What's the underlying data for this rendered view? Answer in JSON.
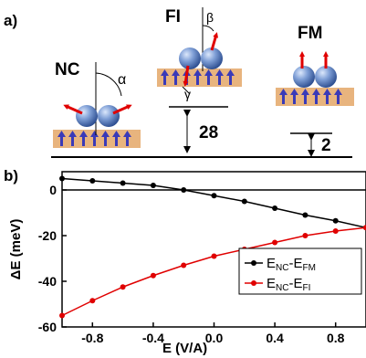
{
  "panel_a": {
    "label": "a)",
    "configs": {
      "nc": {
        "name": "NC",
        "angle_label": "α"
      },
      "fi": {
        "name": "FI",
        "angle_label_top": "β",
        "angle_label_bottom": "γ"
      },
      "fm": {
        "name": "FM"
      }
    },
    "energy_gaps": {
      "fi_gap": "28",
      "fm_gap": "2"
    },
    "colors": {
      "substrate": "#e8b47e",
      "substrate_arrow": "#3a3ab8",
      "spin_arrow": "#e00000",
      "atom": "#5f86c7"
    }
  },
  "panel_b": {
    "label": "b)"
  },
  "chart_data": {
    "type": "line",
    "xlabel": "E (V/A)",
    "ylabel": "ΔE (meV)",
    "xlim": [
      -1.0,
      1.0
    ],
    "ylim": [
      -60,
      8
    ],
    "xticks": [
      "-0.8",
      "-0.4",
      "0.0",
      "0.4",
      "0.8"
    ],
    "xtick_values": [
      -0.8,
      -0.4,
      0.0,
      0.4,
      0.8
    ],
    "yticks": [
      "0",
      "-20",
      "-40",
      "-60"
    ],
    "ytick_values": [
      0,
      -20,
      -40,
      -60
    ],
    "grid": false,
    "legend_placement": "bottom-right",
    "series": [
      {
        "name_main": "E",
        "name_sub1": "NC",
        "name_mid": "-E",
        "name_sub2": "FM",
        "color": "#000000",
        "x": [
          -1.0,
          -0.8,
          -0.6,
          -0.4,
          -0.2,
          0.0,
          0.2,
          0.4,
          0.6,
          0.8,
          1.0
        ],
        "y": [
          5,
          4,
          3,
          2,
          0,
          -2.5,
          -5,
          -8,
          -11,
          -13.5,
          -16.5
        ]
      },
      {
        "name_main": "E",
        "name_sub1": "NC",
        "name_mid": "-E",
        "name_sub2": "FI",
        "color": "#e00000",
        "x": [
          -1.0,
          -0.8,
          -0.6,
          -0.4,
          -0.2,
          0.0,
          0.2,
          0.4,
          0.6,
          0.8,
          1.0
        ],
        "y": [
          -55,
          -48.5,
          -42.5,
          -37.5,
          -33,
          -29,
          -26,
          -23,
          -20,
          -18,
          -16.5
        ]
      }
    ]
  }
}
